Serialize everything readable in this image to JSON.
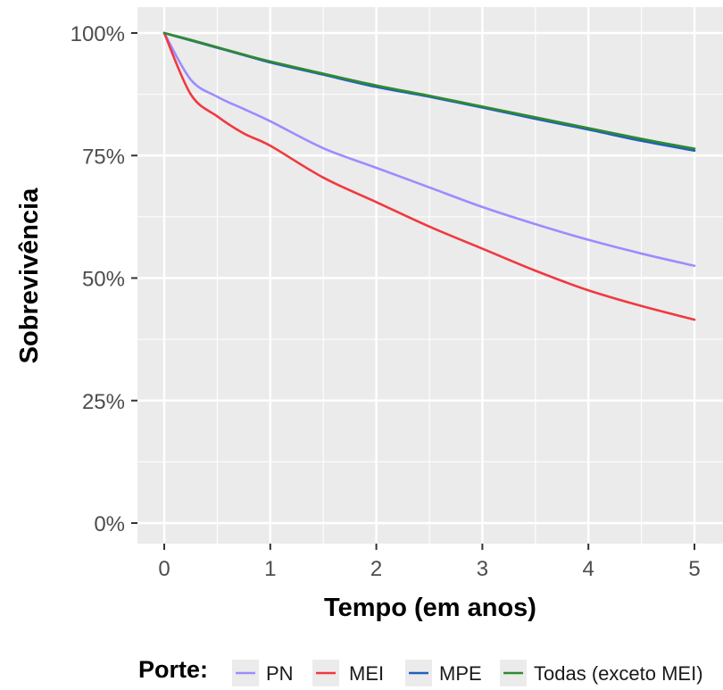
{
  "chart_data": {
    "type": "line",
    "xlabel": "Tempo (em anos)",
    "ylabel": "Sobrevivência",
    "xlim": [
      0,
      5
    ],
    "ylim": [
      0,
      1
    ],
    "x_ticks": [
      "0",
      "1",
      "2",
      "3",
      "4",
      "5"
    ],
    "y_ticks": [
      "0%",
      "25%",
      "50%",
      "75%",
      "100%"
    ],
    "grid": true,
    "legend": {
      "title": "Porte:",
      "position": "bottom"
    },
    "x": [
      0,
      0.25,
      0.5,
      0.75,
      1,
      1.5,
      2,
      2.5,
      3,
      3.5,
      4,
      4.5,
      5
    ],
    "series": [
      {
        "name": "PN",
        "color": "#9b8cff",
        "values": [
          1.0,
          0.905,
          0.87,
          0.845,
          0.82,
          0.765,
          0.725,
          0.685,
          0.645,
          0.61,
          0.578,
          0.55,
          0.525
        ]
      },
      {
        "name": "MEI",
        "color": "#f0393f",
        "values": [
          1.0,
          0.875,
          0.83,
          0.795,
          0.77,
          0.705,
          0.655,
          0.605,
          0.56,
          0.515,
          0.475,
          0.443,
          0.415
        ]
      },
      {
        "name": "MPE",
        "color": "#1f5fc1",
        "values": [
          1.0,
          0.985,
          0.97,
          0.955,
          0.94,
          0.915,
          0.89,
          0.87,
          0.848,
          0.825,
          0.803,
          0.78,
          0.76
        ]
      },
      {
        "name": "Todas (exceto MEI)",
        "color": "#2f8a2f",
        "values": [
          1.0,
          0.986,
          0.971,
          0.956,
          0.942,
          0.917,
          0.893,
          0.872,
          0.85,
          0.828,
          0.806,
          0.784,
          0.764
        ]
      }
    ]
  }
}
